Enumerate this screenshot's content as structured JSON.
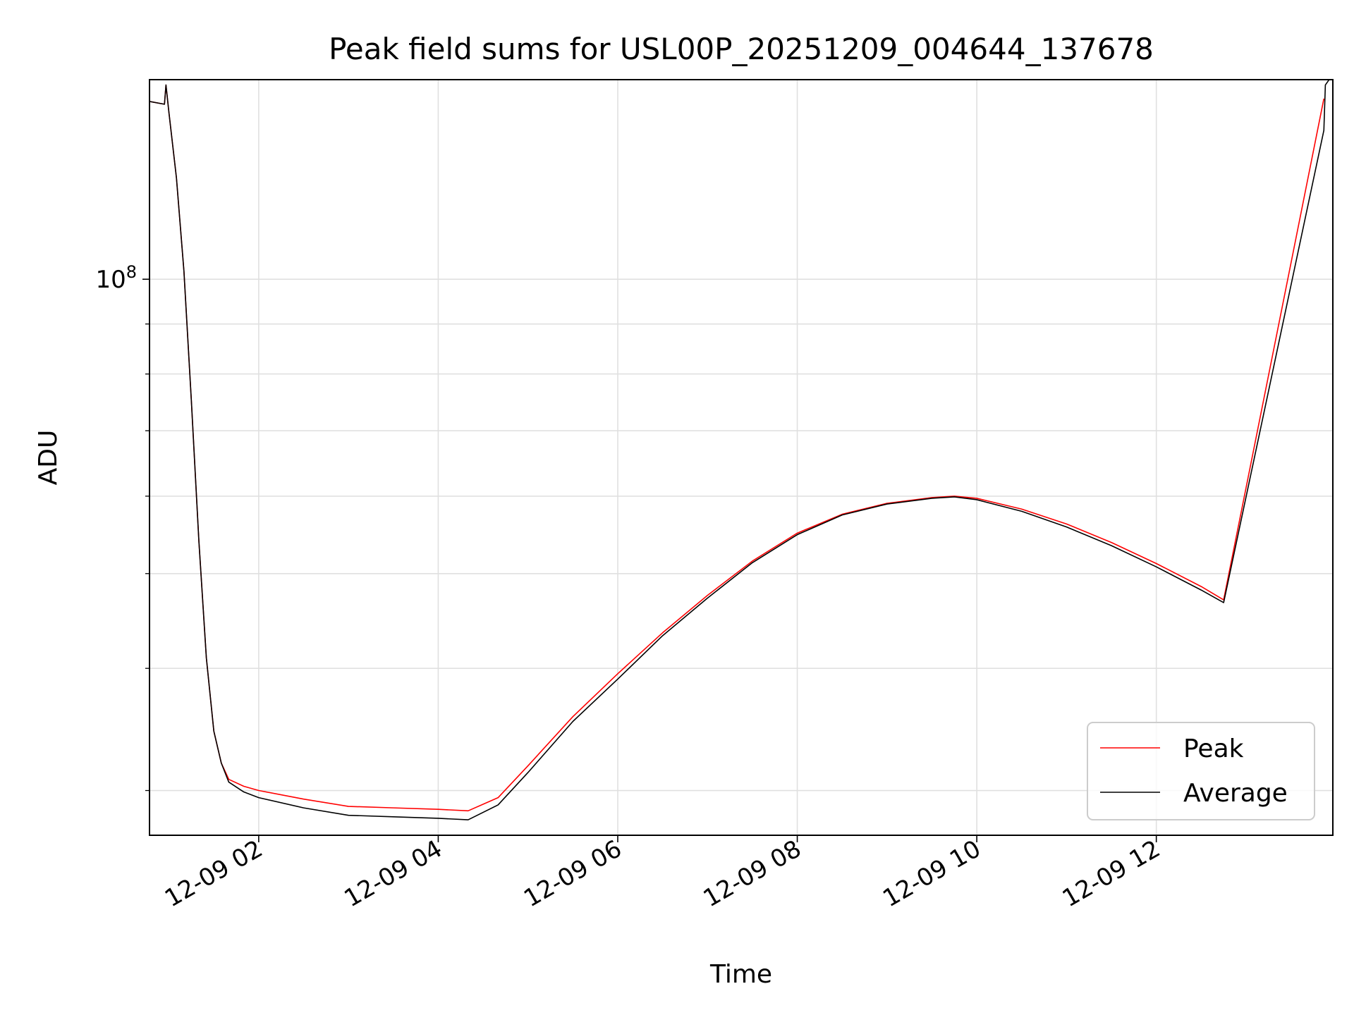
{
  "chart_data": {
    "type": "line",
    "title": "Peak field sums for USL00P_20251209_004644_137678",
    "xlabel": "Time",
    "ylabel": "ADU",
    "y_scale": "log",
    "ylim": [
      27000000,
      160000000
    ],
    "xlim": [
      "2025-12-09 00:47",
      "2025-12-09 13:58"
    ],
    "grid": true,
    "legend_position": "lower-right",
    "x_tick_labels": [
      "12-09 02",
      "12-09 04",
      "12-09 06",
      "12-09 08",
      "12-09 10",
      "12-09 12"
    ],
    "x_tick_times": [
      "2025-12-09 02:00",
      "2025-12-09 04:00",
      "2025-12-09 06:00",
      "2025-12-09 08:00",
      "2025-12-09 10:00",
      "2025-12-09 12:00"
    ],
    "y_major_ticks": [
      {
        "value": 100000000,
        "label": "10",
        "exponent": "8"
      }
    ],
    "y_minor_ticks": [
      30000000,
      40000000,
      50000000,
      60000000,
      70000000,
      80000000,
      90000000,
      200000000
    ],
    "series": [
      {
        "name": "Peak",
        "color": "#ff0000",
        "x": [
          "2025-12-09 00:47",
          "2025-12-09 00:57",
          "2025-12-09 00:58",
          "2025-12-09 01:00",
          "2025-12-09 01:05",
          "2025-12-09 01:10",
          "2025-12-09 01:15",
          "2025-12-09 01:20",
          "2025-12-09 01:25",
          "2025-12-09 01:30",
          "2025-12-09 01:35",
          "2025-12-09 01:40",
          "2025-12-09 01:50",
          "2025-12-09 02:00",
          "2025-12-09 02:30",
          "2025-12-09 03:00",
          "2025-12-09 03:30",
          "2025-12-09 04:00",
          "2025-12-09 04:20",
          "2025-12-09 04:40",
          "2025-12-09 05:00",
          "2025-12-09 05:30",
          "2025-12-09 06:00",
          "2025-12-09 06:30",
          "2025-12-09 07:00",
          "2025-12-09 07:30",
          "2025-12-09 08:00",
          "2025-12-09 08:30",
          "2025-12-09 09:00",
          "2025-12-09 09:30",
          "2025-12-09 09:45",
          "2025-12-09 10:00",
          "2025-12-09 10:30",
          "2025-12-09 11:00",
          "2025-12-09 11:30",
          "2025-12-09 12:00",
          "2025-12-09 12:30",
          "2025-12-09 12:45",
          "2025-12-09 13:52"
        ],
        "values": [
          152000000,
          151000000,
          158000000,
          148000000,
          127000000,
          102000000,
          75000000,
          54000000,
          41000000,
          34500000,
          32000000,
          30800000,
          30300000,
          30000000,
          29400000,
          28900000,
          28800000,
          28700000,
          28600000,
          29500000,
          31800000,
          35700000,
          39500000,
          43500000,
          47500000,
          51500000,
          55000000,
          57500000,
          59000000,
          59800000,
          60000000,
          59700000,
          58200000,
          56200000,
          53800000,
          51200000,
          48500000,
          47000000,
          153000000
        ]
      },
      {
        "name": "Average",
        "color": "#000000",
        "x": [
          "2025-12-09 00:47",
          "2025-12-09 00:57",
          "2025-12-09 00:58",
          "2025-12-09 01:00",
          "2025-12-09 01:05",
          "2025-12-09 01:10",
          "2025-12-09 01:15",
          "2025-12-09 01:20",
          "2025-12-09 01:25",
          "2025-12-09 01:30",
          "2025-12-09 01:35",
          "2025-12-09 01:40",
          "2025-12-09 01:50",
          "2025-12-09 02:00",
          "2025-12-09 02:30",
          "2025-12-09 03:00",
          "2025-12-09 03:30",
          "2025-12-09 04:00",
          "2025-12-09 04:20",
          "2025-12-09 04:40",
          "2025-12-09 05:00",
          "2025-12-09 05:30",
          "2025-12-09 06:00",
          "2025-12-09 06:30",
          "2025-12-09 07:00",
          "2025-12-09 07:30",
          "2025-12-09 08:00",
          "2025-12-09 08:30",
          "2025-12-09 09:00",
          "2025-12-09 09:30",
          "2025-12-09 09:45",
          "2025-12-09 10:00",
          "2025-12-09 10:30",
          "2025-12-09 11:00",
          "2025-12-09 11:30",
          "2025-12-09 12:00",
          "2025-12-09 12:30",
          "2025-12-09 12:45",
          "2025-12-09 13:52",
          "2025-12-09 13:53",
          "2025-12-09 13:58"
        ],
        "values": [
          152000000,
          151000000,
          158000000,
          148000000,
          127000000,
          102000000,
          75000000,
          54000000,
          41000000,
          34500000,
          32000000,
          30600000,
          29900000,
          29500000,
          28800000,
          28300000,
          28200000,
          28100000,
          28000000,
          29000000,
          31300000,
          35300000,
          39000000,
          43200000,
          47200000,
          51300000,
          54800000,
          57400000,
          58900000,
          59700000,
          59900000,
          59500000,
          57900000,
          55800000,
          53400000,
          50800000,
          48100000,
          46700000,
          142000000,
          158000000,
          162000000
        ]
      }
    ]
  }
}
